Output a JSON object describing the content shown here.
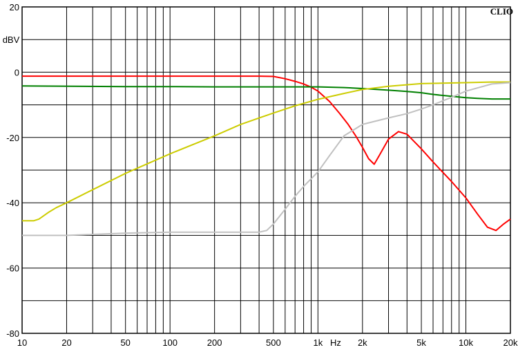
{
  "chart_data": {
    "type": "line",
    "title": "",
    "brand": "CLIO",
    "xlabel": "Hz",
    "ylabel": "dBV",
    "x_scale": "log",
    "xlim": [
      10,
      20000
    ],
    "ylim": [
      -80,
      20
    ],
    "grid": true,
    "x_tick_labels": [
      {
        "value": 10,
        "label": "10"
      },
      {
        "value": 20,
        "label": "20"
      },
      {
        "value": 50,
        "label": "50"
      },
      {
        "value": 100,
        "label": "100"
      },
      {
        "value": 200,
        "label": "200"
      },
      {
        "value": 500,
        "label": "500"
      },
      {
        "value": 1000,
        "label": "1k"
      },
      {
        "value": 2000,
        "label": "2k"
      },
      {
        "value": 5000,
        "label": "5k"
      },
      {
        "value": 10000,
        "label": "10k"
      },
      {
        "value": 20000,
        "label": "20k"
      }
    ],
    "y_tick_labels": [
      {
        "value": 20,
        "label": "20"
      },
      {
        "value": 0,
        "label": "0"
      },
      {
        "value": -20,
        "label": "-20"
      },
      {
        "value": -40,
        "label": "-40"
      },
      {
        "value": -60,
        "label": "-60"
      },
      {
        "value": -80,
        "label": "-80"
      }
    ],
    "series": [
      {
        "color": "#ff0000",
        "x": [
          10,
          50,
          100,
          200,
          400,
          500,
          600,
          700,
          800,
          900,
          1000,
          1200,
          1400,
          1600,
          1800,
          2000,
          2200,
          2400,
          2600,
          3000,
          3500,
          4000,
          5000,
          6000,
          8000,
          10000,
          12000,
          14000,
          16000,
          18000,
          20000
        ],
        "y": [
          -1.2,
          -1.2,
          -1.2,
          -1.2,
          -1.2,
          -1.3,
          -2.0,
          -2.8,
          -3.6,
          -4.6,
          -5.8,
          -9.0,
          -12.6,
          -16.0,
          -19.5,
          -23.0,
          -26.5,
          -28.2,
          -25.5,
          -20.5,
          -18.2,
          -19.0,
          -23.5,
          -27.5,
          -33.5,
          -38.5,
          -43.5,
          -47.5,
          -48.5,
          -46.5,
          -45.0
        ]
      },
      {
        "color": "#008000",
        "x": [
          10,
          50,
          100,
          200,
          500,
          1000,
          1500,
          2000,
          3000,
          4000,
          5000,
          6000,
          8000,
          10000,
          12000,
          15000,
          20000
        ],
        "y": [
          -4.2,
          -4.4,
          -4.4,
          -4.5,
          -4.5,
          -4.5,
          -4.7,
          -5.0,
          -5.5,
          -5.9,
          -6.3,
          -6.8,
          -7.4,
          -7.8,
          -8.0,
          -8.2,
          -8.2
        ]
      },
      {
        "color": "#cccc00",
        "x": [
          10,
          12,
          13,
          15,
          17,
          20,
          30,
          50,
          100,
          200,
          300,
          500,
          700,
          1000,
          1500,
          2000,
          3000,
          5000,
          10000,
          15000,
          20000
        ],
        "y": [
          -45.5,
          -45.5,
          -45.0,
          -43.0,
          -41.5,
          -40.0,
          -36.0,
          -31.0,
          -25.0,
          -19.5,
          -16.0,
          -12.5,
          -10.3,
          -8.3,
          -6.5,
          -5.3,
          -4.3,
          -3.5,
          -3.2,
          -3.0,
          -3.0
        ]
      },
      {
        "color": "#c0c0c0",
        "x": [
          10,
          15,
          20,
          50,
          100,
          200,
          400,
          450,
          500,
          600,
          700,
          800,
          1000,
          1200,
          1500,
          2000,
          3000,
          4000,
          5000,
          6000,
          8000,
          10000,
          15000,
          20000
        ],
        "y": [
          -50.0,
          -50.0,
          -50.0,
          -49.3,
          -49.0,
          -49.0,
          -49.0,
          -48.5,
          -46.5,
          -42.0,
          -38.0,
          -35.0,
          -30.5,
          -25.5,
          -19.5,
          -16.0,
          -14.0,
          -12.7,
          -11.3,
          -10.0,
          -7.7,
          -5.8,
          -3.6,
          -3.2
        ]
      }
    ]
  }
}
